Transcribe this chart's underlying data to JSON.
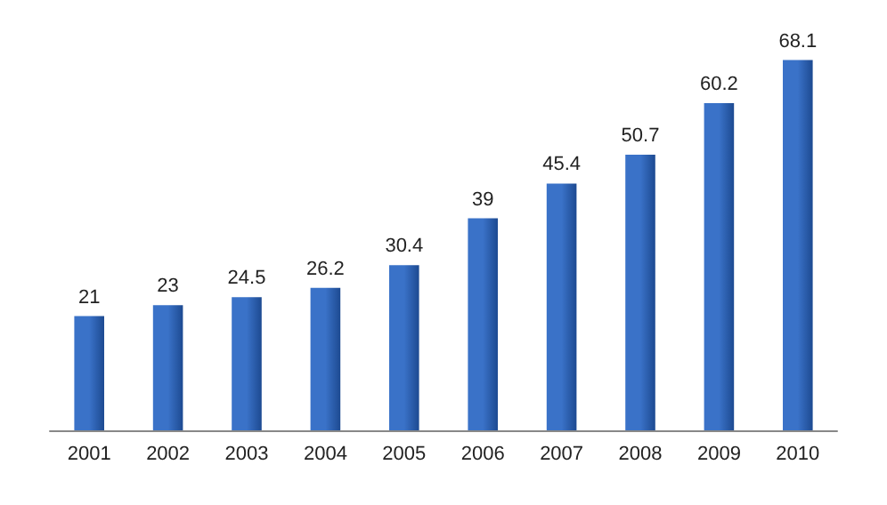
{
  "chart_data": {
    "type": "bar",
    "categories": [
      "2001",
      "2002",
      "2003",
      "2004",
      "2005",
      "2006",
      "2007",
      "2008",
      "2009",
      "2010"
    ],
    "values": [
      21,
      23,
      24.5,
      26.2,
      30.4,
      39,
      45.4,
      50.7,
      60.2,
      68.1
    ],
    "color": "#3a72c8",
    "data_labels": true,
    "grid": false
  }
}
